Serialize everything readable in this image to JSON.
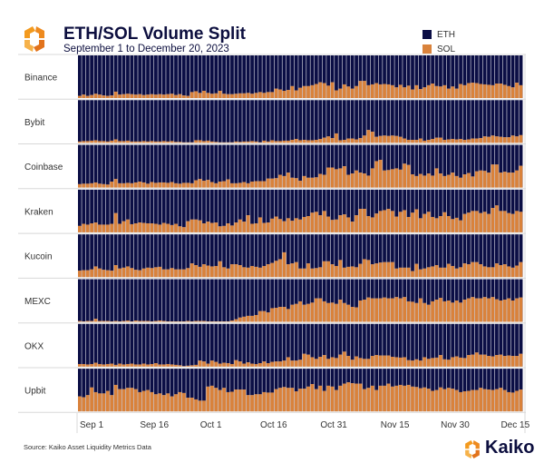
{
  "header": {
    "title": "ETH/SOL Volume Split",
    "subtitle": "September 1 to December 20, 2023"
  },
  "footer": {
    "source": "Source: Kaiko Asset Liquidity Metrics Data",
    "brand": "Kaiko"
  },
  "colors": {
    "ETH": "#0b0e45",
    "SOL": "#d9823b",
    "background": "#c8c8d4"
  },
  "chart_data": {
    "type": "bar",
    "stacked": true,
    "normalized": true,
    "title": "ETH/SOL Volume Split",
    "subtitle": "September 1 to December 20, 2023",
    "legend": [
      {
        "name": "ETH",
        "color": "#0b0e45"
      },
      {
        "name": "SOL",
        "color": "#d9823b"
      }
    ],
    "legend_position": "top-right",
    "x_start": "2023-09-01",
    "x_end": "2023-12-20",
    "x_ticks": [
      {
        "label": "Sep 1",
        "day": 0
      },
      {
        "label": "Sep 16",
        "day": 15
      },
      {
        "label": "Oct 1",
        "day": 30
      },
      {
        "label": "Oct 16",
        "day": 45
      },
      {
        "label": "Oct 31",
        "day": 60
      },
      {
        "label": "Nov 15",
        "day": 75
      },
      {
        "label": "Nov 30",
        "day": 90
      },
      {
        "label": "Dec 15",
        "day": 105
      }
    ],
    "ylim": [
      0,
      100
    ],
    "value_meaning": "SOL share of daily volume (%), ETH = 100 - SOL",
    "panels": [
      {
        "exchange": "Binance",
        "sol": [
          5,
          8,
          5,
          7,
          10,
          8,
          6,
          5,
          6,
          15,
          8,
          9,
          10,
          9,
          8,
          9,
          7,
          8,
          9,
          8,
          9,
          8,
          9,
          10,
          7,
          9,
          6,
          5,
          14,
          16,
          12,
          17,
          12,
          10,
          11,
          17,
          10,
          9,
          9,
          10,
          11,
          11,
          12,
          10,
          12,
          14,
          12,
          14,
          14,
          22,
          20,
          17,
          19,
          28,
          18,
          24,
          28,
          28,
          30,
          33,
          37,
          35,
          29,
          37,
          18,
          22,
          32,
          27,
          22,
          28,
          40,
          40,
          30,
          32,
          35,
          32,
          33,
          32,
          30,
          25,
          31,
          25,
          29,
          20,
          30,
          21,
          25,
          30,
          34,
          28,
          27,
          30,
          22,
          27,
          22,
          33,
          30,
          35,
          36,
          35,
          33,
          32,
          31,
          30,
          34,
          34,
          31,
          28,
          25,
          36,
          30
        ]
      },
      {
        "exchange": "Bybit",
        "sol": [
          3,
          4,
          4,
          5,
          6,
          4,
          4,
          3,
          5,
          8,
          4,
          4,
          5,
          3,
          3,
          3,
          4,
          3,
          4,
          3,
          3,
          4,
          3,
          4,
          2,
          2,
          1,
          1,
          1,
          6,
          6,
          4,
          5,
          3,
          2,
          1,
          1,
          1,
          1,
          3,
          2,
          3,
          3,
          4,
          3,
          1,
          5,
          3,
          6,
          4,
          4,
          5,
          5,
          7,
          9,
          6,
          7,
          6,
          6,
          7,
          9,
          12,
          15,
          11,
          22,
          6,
          7,
          10,
          10,
          8,
          11,
          17,
          30,
          26,
          14,
          16,
          17,
          16,
          17,
          16,
          14,
          10,
          7,
          7,
          7,
          10,
          5,
          7,
          9,
          12,
          12,
          7,
          8,
          9,
          8,
          9,
          7,
          8,
          10,
          10,
          11,
          15,
          14,
          17,
          15,
          14,
          13,
          13,
          17,
          15,
          18
        ]
      },
      {
        "exchange": "Coinbase",
        "sol": [
          8,
          9,
          9,
          10,
          12,
          9,
          8,
          7,
          14,
          20,
          10,
          10,
          11,
          10,
          12,
          14,
          12,
          9,
          13,
          11,
          12,
          12,
          11,
          13,
          10,
          9,
          11,
          11,
          10,
          17,
          20,
          16,
          18,
          13,
          10,
          14,
          15,
          19,
          10,
          10,
          11,
          13,
          10,
          14,
          15,
          15,
          15,
          21,
          21,
          22,
          30,
          27,
          35,
          23,
          22,
          16,
          27,
          23,
          23,
          24,
          32,
          30,
          47,
          47,
          43,
          45,
          50,
          30,
          33,
          40,
          35,
          33,
          28,
          45,
          62,
          65,
          40,
          41,
          43,
          45,
          42,
          56,
          53,
          31,
          27,
          32,
          28,
          33,
          28,
          45,
          33,
          27,
          30,
          35,
          27,
          23,
          31,
          34,
          26,
          38,
          40,
          39,
          35,
          54,
          54,
          35,
          37,
          35,
          35,
          40,
          51
        ]
      },
      {
        "exchange": "Kraken",
        "sol": [
          15,
          20,
          18,
          21,
          23,
          18,
          18,
          18,
          20,
          45,
          20,
          26,
          30,
          19,
          21,
          23,
          22,
          21,
          21,
          20,
          18,
          22,
          20,
          17,
          20,
          14,
          12,
          26,
          30,
          30,
          28,
          21,
          25,
          22,
          23,
          14,
          15,
          21,
          16,
          23,
          30,
          25,
          40,
          20,
          21,
          35,
          22,
          23,
          32,
          37,
          31,
          26,
          33,
          27,
          33,
          30,
          36,
          38,
          46,
          48,
          40,
          50,
          37,
          29,
          30,
          40,
          42,
          35,
          25,
          40,
          55,
          55,
          38,
          35,
          44,
          50,
          52,
          55,
          50,
          37,
          48,
          52,
          36,
          46,
          54,
          33,
          43,
          48,
          36,
          33,
          38,
          47,
          38,
          31,
          34,
          28,
          43,
          46,
          50,
          50,
          45,
          48,
          43,
          57,
          63,
          50,
          50,
          45,
          43,
          50,
          48
        ]
      },
      {
        "exchange": "Kucoin",
        "sol": [
          15,
          16,
          16,
          18,
          25,
          20,
          17,
          16,
          15,
          28,
          20,
          22,
          25,
          21,
          17,
          16,
          20,
          22,
          21,
          23,
          24,
          18,
          18,
          21,
          18,
          18,
          18,
          21,
          32,
          28,
          24,
          30,
          27,
          25,
          26,
          37,
          23,
          20,
          30,
          30,
          28,
          23,
          22,
          26,
          24,
          22,
          26,
          30,
          33,
          38,
          42,
          58,
          30,
          32,
          35,
          20,
          20,
          32,
          20,
          21,
          23,
          37,
          37,
          30,
          26,
          40,
          22,
          24,
          25,
          23,
          31,
          42,
          40,
          30,
          32,
          34,
          35,
          35,
          35,
          20,
          22,
          22,
          22,
          14,
          31,
          18,
          20,
          23,
          25,
          28,
          22,
          22,
          31,
          26,
          20,
          23,
          32,
          30,
          35,
          35,
          30,
          25,
          23,
          23,
          32,
          28,
          30,
          25,
          22,
          27,
          35
        ]
      },
      {
        "exchange": "MEXC",
        "sol": [
          2,
          1,
          2,
          2,
          7,
          2,
          2,
          2,
          1,
          2,
          1,
          2,
          3,
          1,
          3,
          2,
          2,
          2,
          1,
          2,
          3,
          2,
          1,
          1,
          1,
          1,
          1,
          2,
          1,
          2,
          2,
          2,
          1,
          1,
          1,
          1,
          1,
          1,
          3,
          6,
          10,
          12,
          14,
          14,
          16,
          25,
          25,
          22,
          32,
          33,
          35,
          35,
          30,
          40,
          42,
          48,
          40,
          42,
          45,
          55,
          55,
          48,
          44,
          45,
          42,
          52,
          44,
          40,
          35,
          34,
          50,
          52,
          57,
          55,
          55,
          55,
          57,
          55,
          55,
          58,
          55,
          58,
          48,
          47,
          44,
          55,
          44,
          40,
          48,
          52,
          56,
          48,
          50,
          45,
          50,
          45,
          52,
          55,
          58,
          55,
          55,
          58,
          55,
          58,
          53,
          50,
          52,
          55,
          50,
          55,
          57
        ]
      },
      {
        "exchange": "OKX",
        "sol": [
          6,
          6,
          5,
          6,
          9,
          6,
          5,
          6,
          7,
          4,
          7,
          5,
          6,
          7,
          5,
          5,
          7,
          5,
          6,
          8,
          5,
          5,
          6,
          5,
          4,
          3,
          1,
          2,
          3,
          4,
          14,
          12,
          7,
          14,
          11,
          7,
          9,
          8,
          6,
          15,
          12,
          7,
          10,
          7,
          6,
          8,
          12,
          8,
          11,
          12,
          12,
          14,
          22,
          14,
          14,
          16,
          30,
          28,
          22,
          18,
          23,
          27,
          18,
          22,
          20,
          28,
          35,
          25,
          16,
          24,
          20,
          18,
          18,
          25,
          27,
          26,
          26,
          26,
          23,
          22,
          21,
          22,
          15,
          14,
          17,
          14,
          22,
          18,
          20,
          21,
          27,
          17,
          16,
          22,
          24,
          21,
          20,
          27,
          28,
          33,
          28,
          28,
          25,
          24,
          27,
          28,
          25,
          26,
          25,
          25,
          30
        ]
      },
      {
        "exchange": "Upbit",
        "sol": [
          35,
          33,
          38,
          56,
          45,
          42,
          42,
          48,
          38,
          62,
          52,
          52,
          55,
          55,
          52,
          45,
          48,
          50,
          45,
          40,
          42,
          38,
          42,
          35,
          40,
          45,
          43,
          32,
          32,
          28,
          25,
          25,
          58,
          60,
          55,
          50,
          55,
          45,
          46,
          51,
          51,
          51,
          38,
          38,
          40,
          40,
          45,
          44,
          44,
          52,
          55,
          57,
          55,
          55,
          47,
          53,
          53,
          58,
          64,
          52,
          60,
          48,
          60,
          58,
          50,
          60,
          65,
          68,
          66,
          65,
          65,
          52,
          55,
          60,
          50,
          60,
          60,
          65,
          58,
          60,
          62,
          60,
          62,
          58,
          57,
          54,
          56,
          53,
          48,
          50,
          56,
          52,
          55,
          53,
          50,
          45,
          47,
          48,
          50,
          50,
          55,
          52,
          51,
          50,
          52,
          55,
          50,
          45,
          44,
          48,
          51
        ]
      }
    ]
  }
}
